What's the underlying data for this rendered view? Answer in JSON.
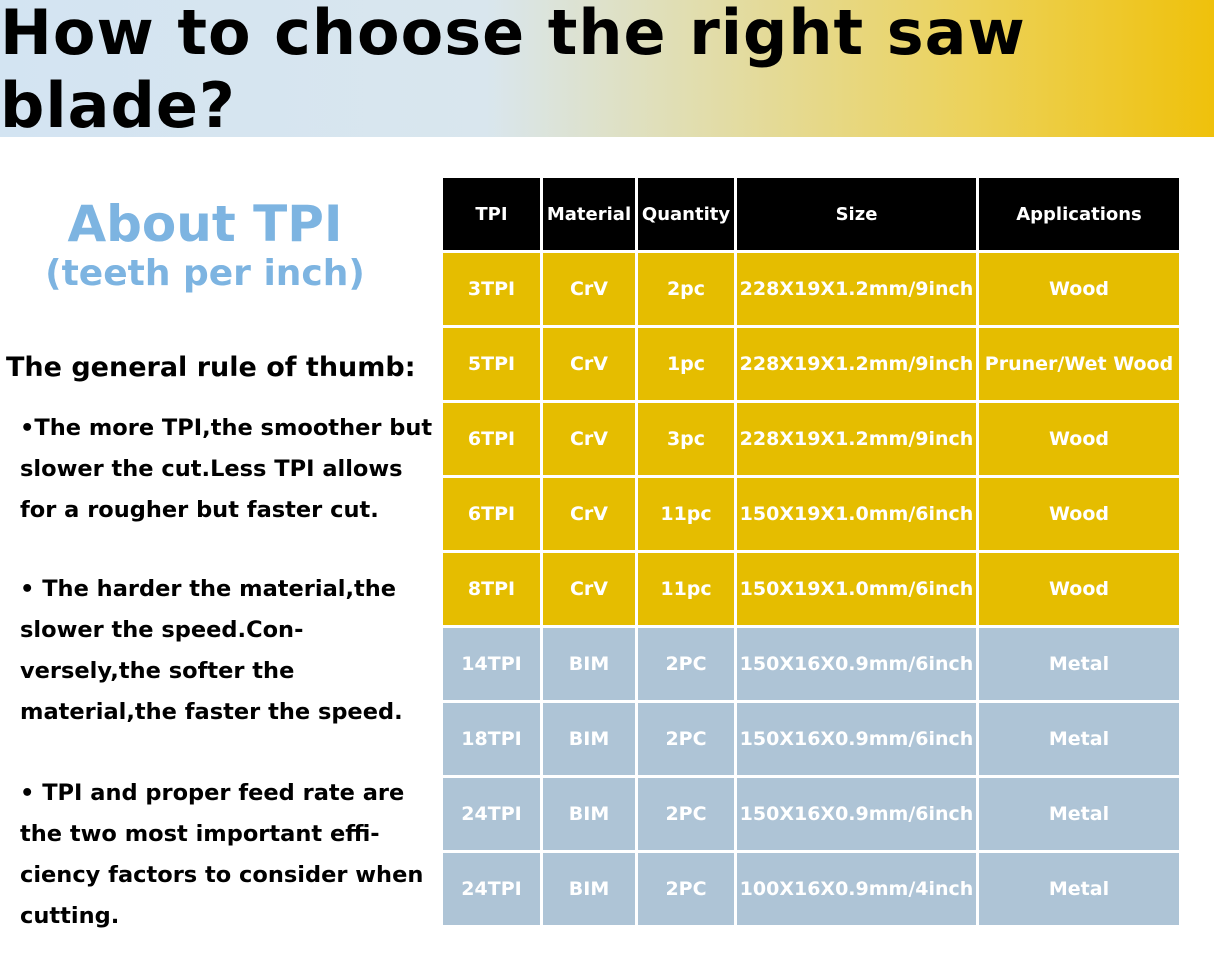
{
  "header": {
    "title": "How to choose the right saw blade?"
  },
  "about": {
    "title": "About TPI",
    "subtitle": "(teeth per inch)"
  },
  "rules": {
    "heading": "The general rule of thumb:",
    "bullets": [
      "•The more TPI,the smoother but slower the cut.Less TPI allows for a rougher but faster cut.",
      "• The harder the material,the slower the speed.Con-versely,the softer the material,the faster the speed.",
      "• TPI and proper feed rate are the two most important effi-ciency factors to consider when cutting."
    ]
  },
  "table": {
    "headers": [
      "TPI",
      "Material",
      "Quantity",
      "Size",
      "Applications"
    ],
    "rows": [
      [
        "3TPI",
        "CrV",
        "2pc",
        "228X19X1.2mm/9inch",
        "Wood"
      ],
      [
        "5TPI",
        "CrV",
        "1pc",
        "228X19X1.2mm/9inch",
        "Pruner/Wet Wood"
      ],
      [
        "6TPI",
        "CrV",
        "3pc",
        "228X19X1.2mm/9inch",
        "Wood"
      ],
      [
        "6TPI",
        "CrV",
        "11pc",
        "150X19X1.0mm/6inch",
        "Wood"
      ],
      [
        "8TPI",
        "CrV",
        "11pc",
        "150X19X1.0mm/6inch",
        "Wood"
      ],
      [
        "14TPI",
        "BIM",
        "2PC",
        "150X16X0.9mm/6inch",
        "Metal"
      ],
      [
        "18TPI",
        "BIM",
        "2PC",
        "150X16X0.9mm/6inch",
        "Metal"
      ],
      [
        "24TPI",
        "BIM",
        "2PC",
        "150X16X0.9mm/6inch",
        "Metal"
      ],
      [
        "24TPI",
        "BIM",
        "2PC",
        "100X16X0.9mm/4inch",
        "Metal"
      ]
    ]
  }
}
